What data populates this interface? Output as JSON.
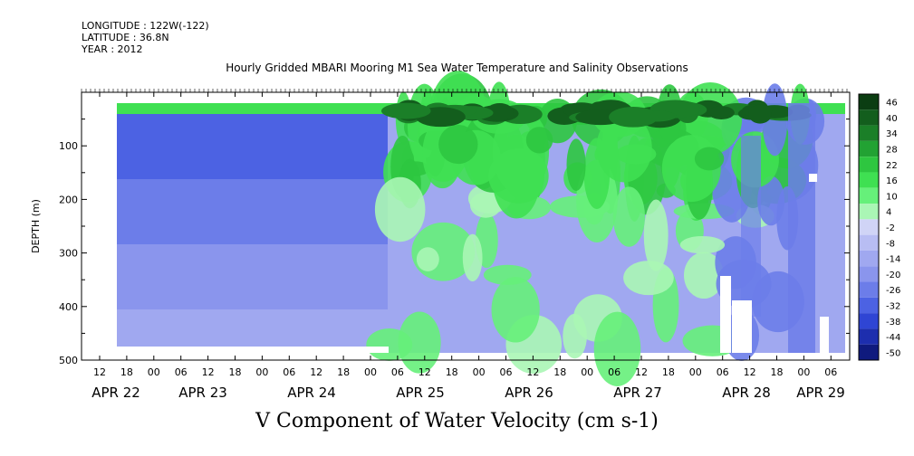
{
  "meta": {
    "longitude": "LONGITUDE : 122W(-122)",
    "latitude": "LATITUDE : 36.8N",
    "year": "YEAR : 2012"
  },
  "chart_data": {
    "type": "heatmap",
    "title": "Hourly Gridded MBARI Mooring M1 Sea Water Temperature and Salinity Observations",
    "xlabel": "V Component of Water Velocity (cm s-1)",
    "ylabel": "DEPTH (m)",
    "yticks": [
      "100",
      "200",
      "300",
      "400",
      "500"
    ],
    "ylim": [
      500,
      0
    ],
    "hour_labels": [
      "12",
      "18",
      "00",
      "06",
      "12",
      "18",
      "00",
      "06",
      "12",
      "18",
      "00",
      "06",
      "12",
      "18",
      "00",
      "06",
      "12",
      "18",
      "00",
      "06",
      "12",
      "18",
      "00",
      "06",
      "12",
      "18",
      "00",
      "06"
    ],
    "day_labels": [
      "APR 22",
      "APR 23",
      "APR 24",
      "APR 25",
      "APR 26",
      "APR 27",
      "APR 28",
      "APR 29"
    ],
    "colorbar": {
      "levels": [
        "46",
        "40",
        "34",
        "28",
        "22",
        "16",
        "10",
        "4",
        "-2",
        "-8",
        "-14",
        "-20",
        "-26",
        "-32",
        "-38",
        "-44",
        "-50"
      ],
      "colors": [
        "#0b3d12",
        "#135e1d",
        "#1b7f28",
        "#22a233",
        "#2ec640",
        "#3fe052",
        "#66f07a",
        "#aaf6b5",
        "#d0d4f6",
        "#b8bdf3",
        "#a0a8f0",
        "#8a95ed",
        "#6c7de9",
        "#4c62e3",
        "#2f45d4",
        "#1d2eae",
        "#0f1a7e"
      ]
    },
    "regions": [
      {
        "label": "near-surface band",
        "value": 20
      },
      {
        "label": "upper water column Apr 25-28",
        "value": 18
      },
      {
        "label": "deep layer before Apr 25",
        "value": -22
      },
      {
        "label": "deep layer after Apr 25",
        "value": -16
      }
    ]
  }
}
